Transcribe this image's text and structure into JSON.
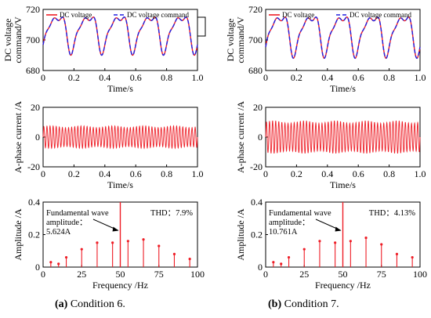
{
  "colors": {
    "measured": "#ee1c25",
    "command": "#1f1fe0",
    "axis": "#000000"
  },
  "captions": [
    {
      "letter": "(a)",
      "text": " Condition 6."
    },
    {
      "letter": "(b)",
      "text": " Condition 7."
    }
  ],
  "chart_data": [
    {
      "type": "line",
      "panel": "a-voltage",
      "ylabel": "DC voltage\ncommand/V",
      "xlabel": "Time/s",
      "xlim": [
        0,
        1.0
      ],
      "ylim": [
        680,
        720
      ],
      "xticks": [
        "0",
        "0.2",
        "0.4",
        "0.6",
        "0.8",
        "1.0"
      ],
      "yticks": [
        "680",
        "700",
        "720"
      ],
      "legend": [
        "DC voltage",
        "DC voltage command"
      ],
      "series": [
        {
          "name": "DC voltage",
          "waveform": "periodic",
          "period_s": 0.2,
          "mean": 702.5,
          "min": 690,
          "max": 715
        },
        {
          "name": "DC voltage command",
          "waveform": "periodic",
          "period_s": 0.2,
          "mean": 702.5,
          "min": 690,
          "max": 715
        }
      ]
    },
    {
      "type": "line",
      "panel": "a-current",
      "ylabel": "A-phase current /A",
      "xlabel": "Time/s",
      "xlim": [
        0,
        1.0
      ],
      "ylim": [
        -20,
        20
      ],
      "xticks": [
        "0",
        "0.2",
        "0.4",
        "0.6",
        "0.8",
        "1.0"
      ],
      "yticks": [
        "-20",
        "0",
        "20"
      ],
      "series": [
        {
          "waveform": "sinusoid",
          "frequency_hz": 50,
          "amplitude": 7.5
        }
      ]
    },
    {
      "type": "bar",
      "panel": "a-spectrum",
      "ylabel": "Amplitude /A",
      "xlabel": "Frequency /Hz",
      "xlim": [
        0,
        100
      ],
      "ylim": [
        0,
        0.4
      ],
      "xticks": [
        "0",
        "25",
        "50",
        "75",
        "100"
      ],
      "yticks": [
        "0",
        "0.2",
        "0.4"
      ],
      "annotation": [
        "Fundamental wave",
        "amplitude：",
        "5.624A"
      ],
      "thd": "THD：7.9%",
      "fundamental": {
        "x": 50,
        "value": 5.624
      },
      "x": [
        5,
        10,
        15,
        25,
        35,
        45,
        55,
        65,
        75,
        85,
        95
      ],
      "values": [
        0.03,
        0.02,
        0.06,
        0.11,
        0.15,
        0.15,
        0.16,
        0.17,
        0.13,
        0.08,
        0.05
      ]
    },
    {
      "type": "line",
      "panel": "b-voltage",
      "ylabel": "DC voltage\ncommand/V",
      "xlabel": "Time/s",
      "xlim": [
        0,
        1.0
      ],
      "ylim": [
        680,
        720
      ],
      "xticks": [
        "0",
        "0.2",
        "0.4",
        "0.6",
        "0.8",
        "1.0"
      ],
      "yticks": [
        "680",
        "700",
        "720"
      ],
      "legend": [
        "DC voltage",
        "DC voltage command"
      ],
      "series": [
        {
          "name": "DC voltage",
          "waveform": "periodic",
          "period_s": 0.2,
          "mean": 701.5,
          "min": 688,
          "max": 715
        },
        {
          "name": "DC voltage command",
          "waveform": "periodic",
          "period_s": 0.2,
          "mean": 701.5,
          "min": 688,
          "max": 715
        }
      ]
    },
    {
      "type": "line",
      "panel": "b-current",
      "ylabel": "A-phase current /A",
      "xlabel": "Time/s",
      "xlim": [
        0,
        1.0
      ],
      "ylim": [
        -20,
        20
      ],
      "xticks": [
        "0",
        "0.2",
        "0.4",
        "0.6",
        "0.8",
        "1.0"
      ],
      "yticks": [
        "-20",
        "0",
        "20"
      ],
      "series": [
        {
          "waveform": "sinusoid",
          "frequency_hz": 50,
          "amplitude": 11
        }
      ]
    },
    {
      "type": "bar",
      "panel": "b-spectrum",
      "ylabel": "Amplitude /A",
      "xlabel": "Frequency /Hz",
      "xlim": [
        0,
        100
      ],
      "ylim": [
        0,
        0.4
      ],
      "xticks": [
        "0",
        "25",
        "50",
        "75",
        "100"
      ],
      "yticks": [
        "0",
        "0.2",
        "0.4"
      ],
      "annotation": [
        "Fundamental wave",
        "amplitude：",
        "10.761A"
      ],
      "thd": "THD：4.13%",
      "fundamental": {
        "x": 50,
        "value": 10.761
      },
      "x": [
        5,
        10,
        15,
        25,
        35,
        45,
        55,
        65,
        75,
        85,
        95
      ],
      "values": [
        0.03,
        0.02,
        0.06,
        0.11,
        0.16,
        0.15,
        0.16,
        0.18,
        0.14,
        0.08,
        0.06
      ]
    }
  ]
}
